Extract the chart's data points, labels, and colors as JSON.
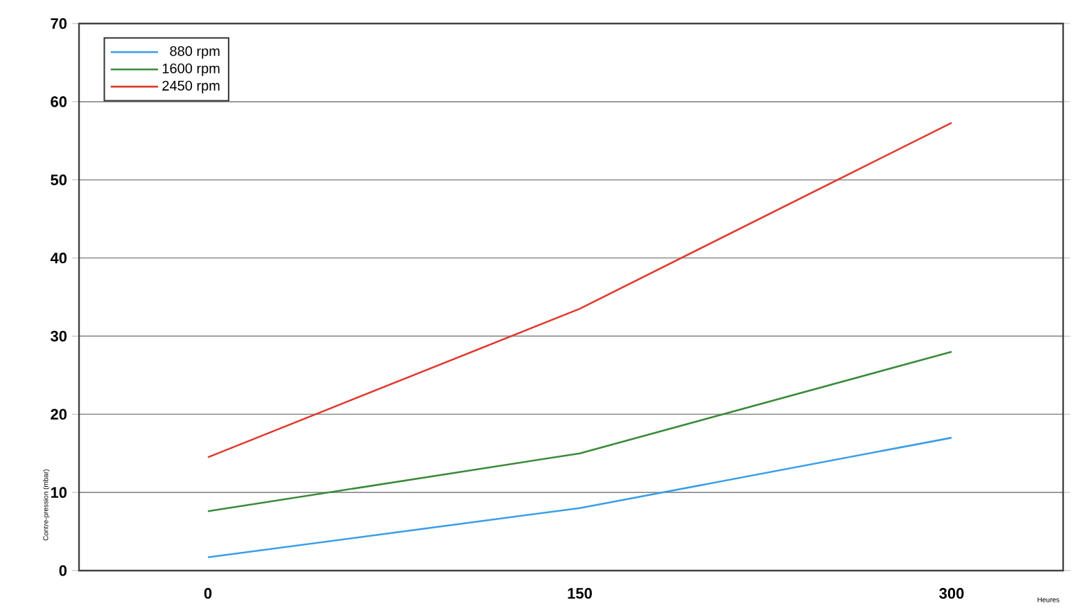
{
  "chart_data": {
    "type": "line",
    "xlabel": "Heures",
    "ylabel": "Contre-pression (mbar)",
    "x": [
      0,
      150,
      300
    ],
    "xlim": [
      -52,
      345
    ],
    "xticks": [
      0,
      150,
      300
    ],
    "ylim": [
      0,
      70
    ],
    "yticks": [
      0,
      10,
      20,
      30,
      40,
      50,
      60,
      70
    ],
    "grid": "y",
    "legend": "top left",
    "marker": "none",
    "line_style": "solid",
    "series": [
      {
        "name": "880 rpm",
        "color": "#3a9ee8",
        "values": [
          1.7,
          8,
          17
        ]
      },
      {
        "name": "1600 rpm",
        "color": "#3a8a3a",
        "values": [
          7.6,
          15,
          28
        ]
      },
      {
        "name": "2450 rpm",
        "color": "#e03a2e",
        "values": [
          14.5,
          33.5,
          57.3
        ]
      }
    ]
  }
}
